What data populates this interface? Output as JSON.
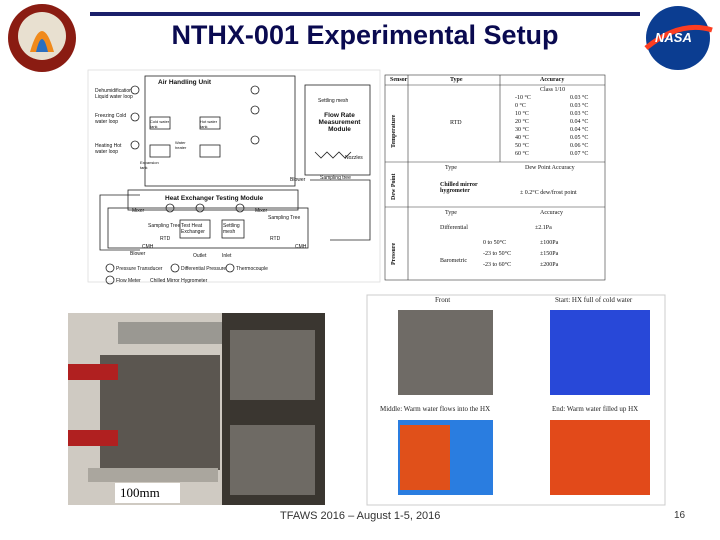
{
  "header": {
    "title": "NTHX-001 Experimental Setup",
    "logo_right": "NASA"
  },
  "diagram": {
    "labels": [
      "Air Handling Unit",
      "Dehumidification Liquid water loop",
      "Freezing Cold water loop",
      "Heating Hot water loop",
      "Cold water tank",
      "Hot water tank",
      "Water heater",
      "Expansion tank",
      "Flow Rate Measurement Module",
      "Settling mesh",
      "Nozzles",
      "Sampling tree",
      "Blower",
      "Heat Exchanger Testing Module",
      "Mixer",
      "Mixer",
      "Sampling Tree",
      "Sampling Tree",
      "Test Heat Exchanger",
      "Settling mesh",
      "CMH",
      "CMH",
      "RTD",
      "RTD",
      "Outlet",
      "Inlet",
      "Blower"
    ],
    "legend": [
      "Pressure Transducer",
      "Differential Pressure",
      "Thermocouple",
      "Flow Meter",
      "Chilled Mirror Hygrometer"
    ]
  },
  "table": {
    "headers": [
      "Sensor",
      "Type",
      "Accuracy"
    ],
    "temperature": {
      "label": "Temperature",
      "class": "Class 1/10",
      "type": "RTD",
      "rows": [
        [
          "-10 °C",
          "0.03 °C"
        ],
        [
          "0 °C",
          "0.03 °C"
        ],
        [
          "10 °C",
          "0.03 °C"
        ],
        [
          "20 °C",
          "0.04 °C"
        ],
        [
          "30 °C",
          "0.04 °C"
        ],
        [
          "40 °C",
          "0.05 °C"
        ],
        [
          "50 °C",
          "0.06 °C"
        ],
        [
          "60 °C",
          "0.07 °C"
        ]
      ]
    },
    "dew_point": {
      "label": "Dew Point",
      "type_header": "Type",
      "accuracy_header": "Dew Point Accuracy",
      "type": "Chilled mirror hygrometer",
      "accuracy": "± 0.2°C dew/frost point"
    },
    "pressure": {
      "label": "Pressure",
      "type_header": "Type",
      "accuracy_header": "Accuracy",
      "differential": "Differential",
      "differential_accuracy": "±2.1Pa",
      "barometric": "Barometric",
      "rows": [
        [
          "0 to 50°C",
          "±100Pa"
        ],
        [
          "-23 to 50°C",
          "±150Pa"
        ],
        [
          "-23 to 60°C",
          "±200Pa"
        ]
      ]
    }
  },
  "photo": {
    "scale": "100mm"
  },
  "thermal": {
    "front": "Front",
    "start": "Start: HX full of cold water",
    "middle": "Middle: Warm water flows into the HX",
    "end": "End: Warm water filled up HX"
  },
  "footer": {
    "text": "TFAWS 2016 – August 1-5, 2016",
    "page": "16"
  }
}
